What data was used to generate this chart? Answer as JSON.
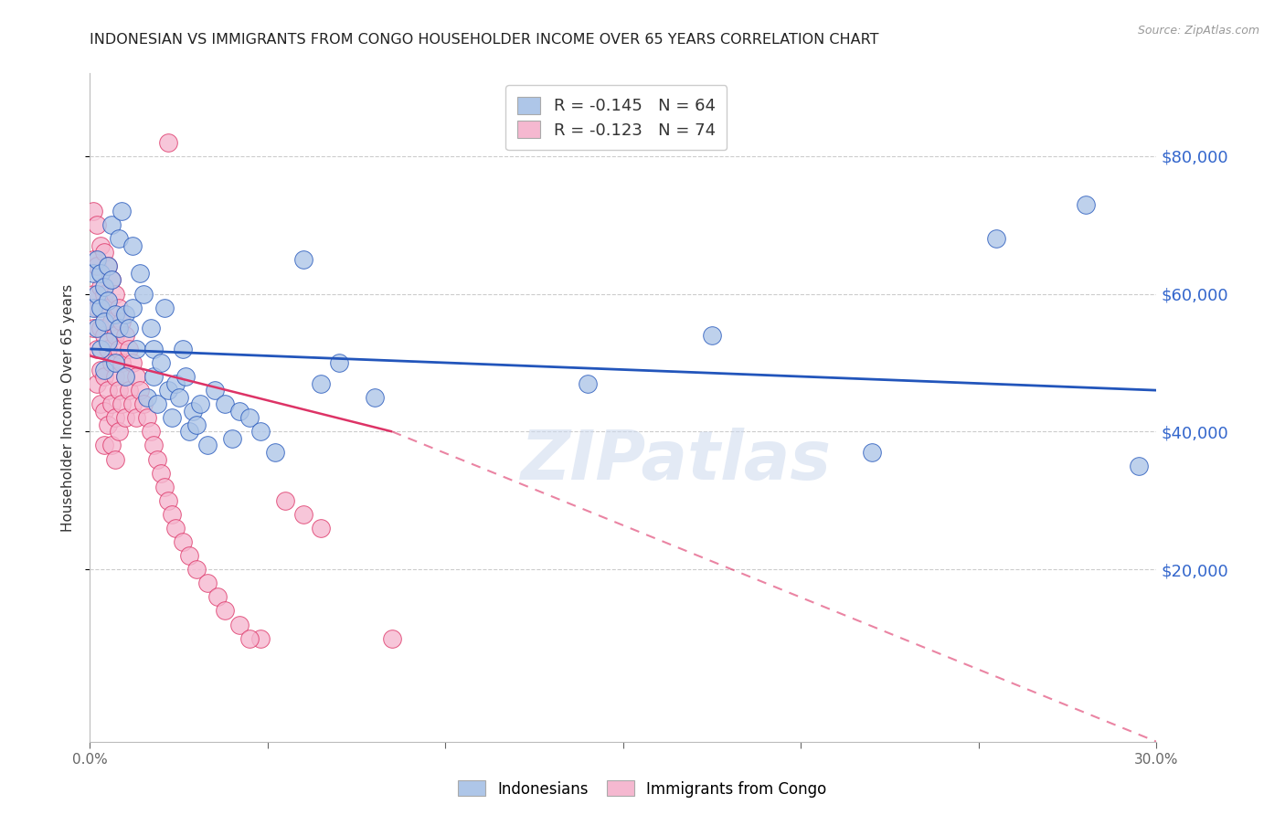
{
  "title": "INDONESIAN VS IMMIGRANTS FROM CONGO HOUSEHOLDER INCOME OVER 65 YEARS CORRELATION CHART",
  "source": "Source: ZipAtlas.com",
  "ylabel": "Householder Income Over 65 years",
  "legend_indonesian": "R = -0.145   N = 64",
  "legend_congo": "R = -0.123   N = 74",
  "legend_label1": "Indonesians",
  "legend_label2": "Immigrants from Congo",
  "watermark": "ZIPatlas",
  "indonesian_color": "#aec6e8",
  "congo_color": "#f5b8d0",
  "indonesian_line_color": "#2255bb",
  "congo_line_color": "#dd3366",
  "ytick_labels": [
    "$20,000",
    "$40,000",
    "$60,000",
    "$80,000"
  ],
  "ytick_values": [
    20000,
    40000,
    60000,
    80000
  ],
  "ylim": [
    -5000,
    92000
  ],
  "xlim": [
    0.0,
    0.3
  ],
  "indonesian_x": [
    0.001,
    0.001,
    0.002,
    0.002,
    0.002,
    0.003,
    0.003,
    0.003,
    0.004,
    0.004,
    0.004,
    0.005,
    0.005,
    0.005,
    0.006,
    0.006,
    0.007,
    0.007,
    0.008,
    0.008,
    0.009,
    0.01,
    0.01,
    0.011,
    0.012,
    0.012,
    0.013,
    0.014,
    0.015,
    0.016,
    0.017,
    0.018,
    0.018,
    0.019,
    0.02,
    0.021,
    0.022,
    0.023,
    0.024,
    0.025,
    0.026,
    0.027,
    0.028,
    0.029,
    0.03,
    0.031,
    0.033,
    0.035,
    0.038,
    0.04,
    0.042,
    0.045,
    0.048,
    0.052,
    0.06,
    0.065,
    0.07,
    0.08,
    0.14,
    0.175,
    0.22,
    0.255,
    0.28,
    0.295
  ],
  "indonesian_y": [
    63000,
    58000,
    65000,
    60000,
    55000,
    63000,
    58000,
    52000,
    61000,
    56000,
    49000,
    64000,
    59000,
    53000,
    70000,
    62000,
    57000,
    50000,
    68000,
    55000,
    72000,
    57000,
    48000,
    55000,
    67000,
    58000,
    52000,
    63000,
    60000,
    45000,
    55000,
    52000,
    48000,
    44000,
    50000,
    58000,
    46000,
    42000,
    47000,
    45000,
    52000,
    48000,
    40000,
    43000,
    41000,
    44000,
    38000,
    46000,
    44000,
    39000,
    43000,
    42000,
    40000,
    37000,
    65000,
    47000,
    50000,
    45000,
    47000,
    54000,
    37000,
    68000,
    73000,
    35000
  ],
  "congo_x": [
    0.001,
    0.001,
    0.001,
    0.001,
    0.002,
    0.002,
    0.002,
    0.002,
    0.002,
    0.003,
    0.003,
    0.003,
    0.003,
    0.003,
    0.004,
    0.004,
    0.004,
    0.004,
    0.004,
    0.004,
    0.005,
    0.005,
    0.005,
    0.005,
    0.005,
    0.006,
    0.006,
    0.006,
    0.006,
    0.006,
    0.007,
    0.007,
    0.007,
    0.007,
    0.007,
    0.008,
    0.008,
    0.008,
    0.008,
    0.009,
    0.009,
    0.009,
    0.01,
    0.01,
    0.01,
    0.011,
    0.011,
    0.012,
    0.012,
    0.013,
    0.013,
    0.014,
    0.015,
    0.016,
    0.017,
    0.018,
    0.019,
    0.02,
    0.021,
    0.022,
    0.023,
    0.024,
    0.026,
    0.028,
    0.03,
    0.033,
    0.036,
    0.038,
    0.042,
    0.048,
    0.055,
    0.06,
    0.065,
    0.085
  ],
  "congo_y": [
    72000,
    65000,
    60000,
    55000,
    70000,
    64000,
    58000,
    52000,
    47000,
    67000,
    61000,
    55000,
    49000,
    44000,
    66000,
    60000,
    54000,
    48000,
    43000,
    38000,
    64000,
    58000,
    52000,
    46000,
    41000,
    62000,
    56000,
    50000,
    44000,
    38000,
    60000,
    54000,
    48000,
    42000,
    36000,
    58000,
    52000,
    46000,
    40000,
    56000,
    50000,
    44000,
    54000,
    48000,
    42000,
    52000,
    46000,
    50000,
    44000,
    48000,
    42000,
    46000,
    44000,
    42000,
    40000,
    38000,
    36000,
    34000,
    32000,
    30000,
    28000,
    26000,
    24000,
    22000,
    20000,
    18000,
    16000,
    14000,
    12000,
    10000,
    30000,
    28000,
    26000,
    10000
  ],
  "congo_extra_x": [
    0.022
  ],
  "congo_extra_y": [
    82000
  ],
  "congo_low_x": [
    0.045
  ],
  "congo_low_y": [
    10000
  ],
  "indo_line_x0": 0.0,
  "indo_line_y0": 52000,
  "indo_line_x1": 0.3,
  "indo_line_y1": 46000,
  "congo_line_solid_x0": 0.0,
  "congo_line_solid_y0": 51000,
  "congo_line_solid_x1": 0.085,
  "congo_line_solid_y1": 40000,
  "congo_line_dash_x0": 0.085,
  "congo_line_dash_y0": 40000,
  "congo_line_dash_x1": 0.3,
  "congo_line_dash_y1": -5000
}
